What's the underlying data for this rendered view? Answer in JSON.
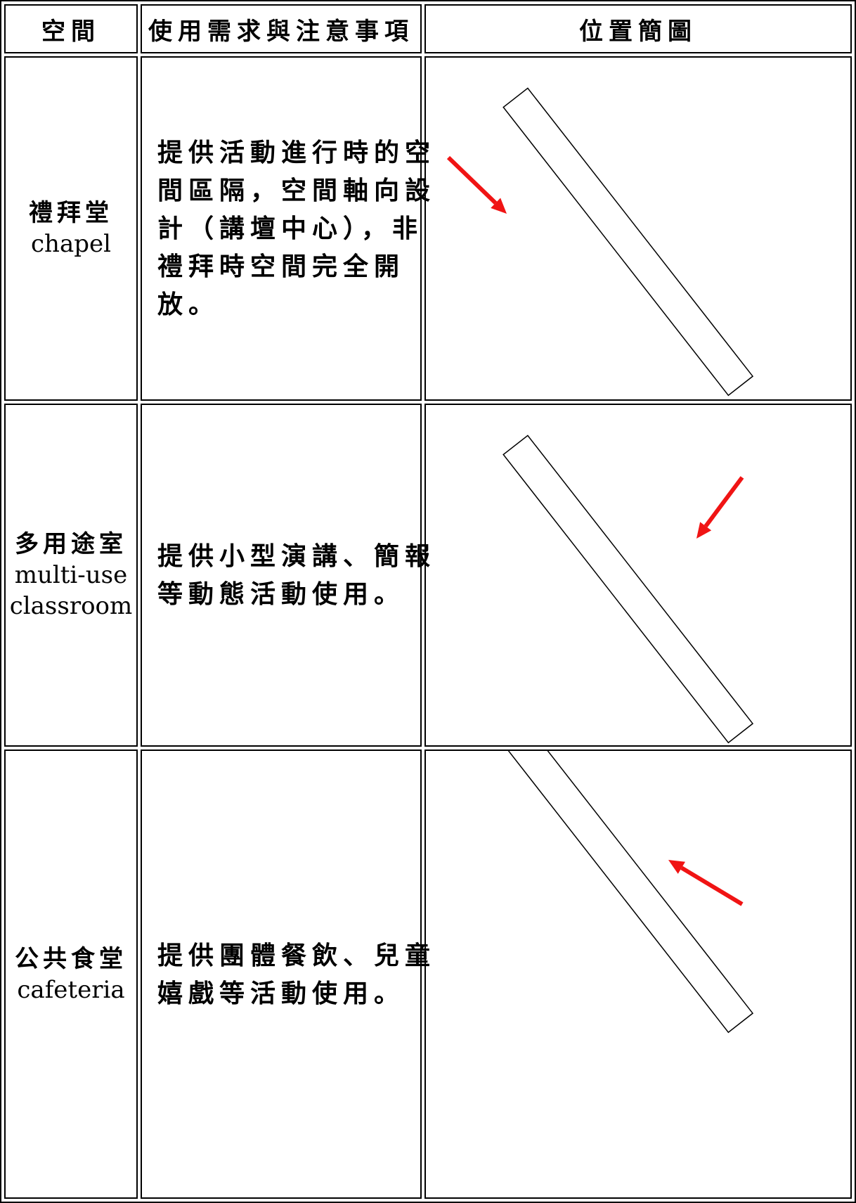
{
  "table": {
    "header": [
      "空間",
      "使用需求與注意事項",
      "位置簡圖"
    ],
    "rows": [
      {
        "name_lines": [
          "禮拜堂",
          "chapel"
        ],
        "description_lines": [
          "提供活動進行時的空",
          "間區隔，空間軸向設",
          "計（講壇中心），非",
          "禮拜時空間完全開",
          "放。"
        ]
      },
      {
        "name_lines": [
          "多用途室",
          "multi-use",
          "classroom"
        ],
        "description_lines": [
          "提供小型演講、簡報",
          "等動態活動使用。"
        ]
      },
      {
        "name_lines": [
          "公共食堂",
          "cafeteria"
        ],
        "description_lines": [
          "提供團體餐飲、兒童",
          "嬉戲等活動使用。"
        ]
      }
    ]
  }
}
